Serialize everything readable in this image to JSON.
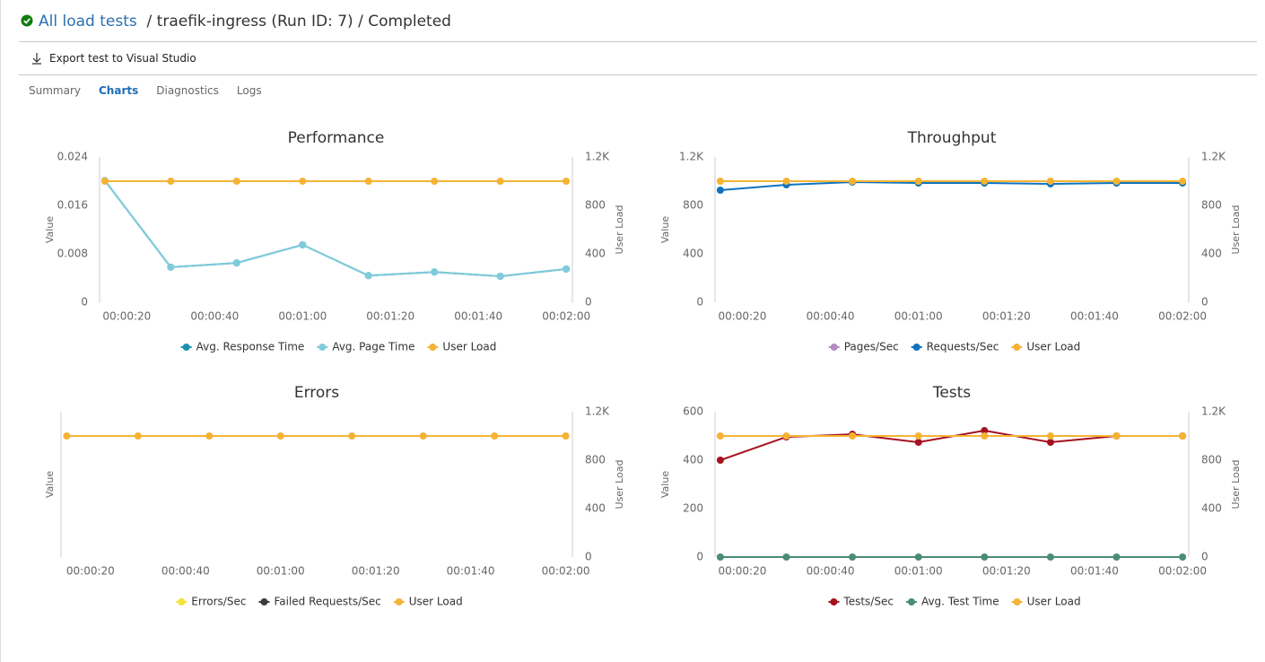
{
  "header": {
    "link": "All load tests",
    "title": "/ traefik-ingress (Run ID: 7) / Completed"
  },
  "toolbar": {
    "export": "Export test to Visual Studio"
  },
  "tabs": {
    "items": [
      "Summary",
      "Charts",
      "Diagnostics",
      "Logs"
    ],
    "active": 1
  },
  "chart_data": [
    {
      "type": "line",
      "title": "Performance",
      "ylabel": "Value",
      "y2label": "User Load",
      "x": [
        15,
        30,
        45,
        60,
        75,
        90,
        105,
        120
      ],
      "xlim": [
        13.8,
        121.4
      ],
      "xticks": [
        {
          "value": 20,
          "label": "00:00:20"
        },
        {
          "value": 40,
          "label": "00:00:40"
        },
        {
          "value": 60,
          "label": "00:01:00"
        },
        {
          "value": 80,
          "label": "00:01:20"
        },
        {
          "value": 100,
          "label": "00:01:40"
        },
        {
          "value": 120,
          "label": "00:02:00"
        }
      ],
      "ylim": [
        0,
        0.024
      ],
      "yticks": [
        0,
        0.008,
        0.016,
        0.024
      ],
      "y2lim": [
        0,
        1200
      ],
      "y2ticks": [
        0,
        400,
        800,
        {
          "value": 1200,
          "label": "1.2K"
        }
      ],
      "grid": false,
      "series": [
        {
          "name": "Avg. Response Time",
          "color": "#1b90b5",
          "values": [
            0.0201,
            0.0058,
            0.0065,
            0.0095,
            0.0044,
            0.005,
            0.0043,
            0.0055
          ]
        },
        {
          "name": "Avg. Page Time",
          "color": "#80cbdb",
          "values": [
            0.0201,
            0.0058,
            0.0065,
            0.0095,
            0.0044,
            0.005,
            0.0043,
            0.0055
          ]
        },
        {
          "name": "User Load",
          "color": "#f5b335",
          "axis": "y2",
          "values": [
            1000,
            1000,
            1000,
            1000,
            1000,
            1000,
            1000,
            1000
          ]
        }
      ]
    },
    {
      "type": "line",
      "title": "Throughput",
      "ylabel": "Value",
      "y2label": "User Load",
      "x": [
        15,
        30,
        45,
        60,
        75,
        90,
        105,
        120
      ],
      "xlim": [
        13.8,
        121.4
      ],
      "xticks": [
        {
          "value": 20,
          "label": "00:00:20"
        },
        {
          "value": 40,
          "label": "00:00:40"
        },
        {
          "value": 60,
          "label": "00:01:00"
        },
        {
          "value": 80,
          "label": "00:01:20"
        },
        {
          "value": 100,
          "label": "00:01:40"
        },
        {
          "value": 120,
          "label": "00:02:00"
        }
      ],
      "ylim": [
        0,
        1200
      ],
      "yticks": [
        0,
        400,
        800,
        {
          "value": 1200,
          "label": "1.2K"
        }
      ],
      "y2lim": [
        0,
        1200
      ],
      "y2ticks": [
        0,
        400,
        800,
        {
          "value": 1200,
          "label": "1.2K"
        }
      ],
      "grid": false,
      "series": [
        {
          "name": "Pages/Sec",
          "color": "#b48ac4",
          "values": [
            null,
            null,
            null,
            null,
            null,
            null,
            null,
            null
          ]
        },
        {
          "name": "Requests/Sec",
          "color": "#0f73c0",
          "values": [
            926,
            970,
            993,
            985,
            985,
            978,
            985,
            985
          ]
        },
        {
          "name": "User Load",
          "color": "#f5b335",
          "axis": "y2",
          "values": [
            1000,
            1000,
            1000,
            1000,
            1000,
            1000,
            1000,
            1000
          ]
        }
      ]
    },
    {
      "type": "line",
      "title": "Errors",
      "ylabel": "Value",
      "y2label": "User Load",
      "x": [
        15,
        30,
        45,
        60,
        75,
        90,
        105,
        120
      ],
      "xlim": [
        13.8,
        121.4
      ],
      "xticks": [
        {
          "value": 20,
          "label": "00:00:20"
        },
        {
          "value": 40,
          "label": "00:00:40"
        },
        {
          "value": 60,
          "label": "00:01:00"
        },
        {
          "value": 80,
          "label": "00:01:20"
        },
        {
          "value": 100,
          "label": "00:01:40"
        },
        {
          "value": 120,
          "label": "00:02:00"
        }
      ],
      "y2lim": [
        0,
        1200
      ],
      "y2ticks": [
        0,
        400,
        800,
        {
          "value": 1200,
          "label": "1.2K"
        }
      ],
      "grid": false,
      "series": [
        {
          "name": "Errors/Sec",
          "color": "#f5e23a",
          "values": [
            null,
            null,
            null,
            null,
            null,
            null,
            null,
            null
          ]
        },
        {
          "name": "Failed Requests/Sec",
          "color": "#3b3b3b",
          "values": [
            null,
            null,
            null,
            null,
            null,
            null,
            null,
            null
          ]
        },
        {
          "name": "User Load",
          "color": "#f5b335",
          "axis": "y2",
          "values": [
            1000,
            1000,
            1000,
            1000,
            1000,
            1000,
            1000,
            1000
          ]
        }
      ]
    },
    {
      "type": "line",
      "title": "Tests",
      "ylabel": "Value",
      "y2label": "User Load",
      "x": [
        15,
        30,
        45,
        60,
        75,
        90,
        105,
        120
      ],
      "xlim": [
        13.8,
        121.4
      ],
      "xticks": [
        {
          "value": 20,
          "label": "00:00:20"
        },
        {
          "value": 40,
          "label": "00:00:40"
        },
        {
          "value": 60,
          "label": "00:01:00"
        },
        {
          "value": 80,
          "label": "00:01:20"
        },
        {
          "value": 100,
          "label": "00:01:40"
        },
        {
          "value": 120,
          "label": "00:02:00"
        }
      ],
      "ylim": [
        0,
        600
      ],
      "yticks": [
        0,
        200,
        400,
        600
      ],
      "y2lim": [
        0,
        1200
      ],
      "y2ticks": [
        0,
        400,
        800,
        {
          "value": 1200,
          "label": "1.2K"
        }
      ],
      "grid": false,
      "series": [
        {
          "name": "Tests/Sec",
          "color": "#a4111f",
          "values": [
            400,
            496,
            507,
            474,
            522,
            474,
            500,
            500
          ]
        },
        {
          "name": "Avg. Test Time",
          "color": "#4a8c74",
          "values": [
            0,
            0,
            0,
            0,
            0,
            0,
            0,
            0
          ]
        },
        {
          "name": "User Load",
          "color": "#f5b335",
          "axis": "y2",
          "values": [
            1000,
            1000,
            1000,
            1000,
            1000,
            1000,
            1000,
            1000
          ]
        }
      ]
    }
  ]
}
